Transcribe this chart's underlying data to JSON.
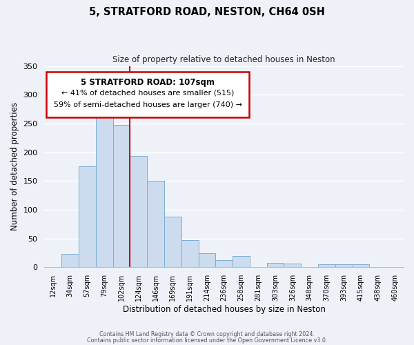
{
  "title": "5, STRATFORD ROAD, NESTON, CH64 0SH",
  "subtitle": "Size of property relative to detached houses in Neston",
  "xlabel": "Distribution of detached houses by size in Neston",
  "ylabel": "Number of detached properties",
  "bar_labels": [
    "12sqm",
    "34sqm",
    "57sqm",
    "79sqm",
    "102sqm",
    "124sqm",
    "146sqm",
    "169sqm",
    "191sqm",
    "214sqm",
    "236sqm",
    "258sqm",
    "281sqm",
    "303sqm",
    "326sqm",
    "348sqm",
    "370sqm",
    "393sqm",
    "415sqm",
    "438sqm",
    "460sqm"
  ],
  "bar_values": [
    0,
    23,
    175,
    268,
    248,
    193,
    150,
    88,
    47,
    25,
    12,
    20,
    0,
    8,
    7,
    0,
    5,
    5,
    5,
    0,
    0
  ],
  "bar_color": "#ccdcee",
  "bar_edge_color": "#7aadd4",
  "ylim": [
    0,
    350
  ],
  "yticks": [
    0,
    50,
    100,
    150,
    200,
    250,
    300,
    350
  ],
  "vline_color": "#cc0000",
  "annotation_title": "5 STRATFORD ROAD: 107sqm",
  "annotation_line1": "← 41% of detached houses are smaller (515)",
  "annotation_line2": "59% of semi-detached houses are larger (740) →",
  "annotation_box_color": "#cc0000",
  "footer_line1": "Contains HM Land Registry data © Crown copyright and database right 2024.",
  "footer_line2": "Contains public sector information licensed under the Open Government Licence v3.0.",
  "bg_color": "#eef2f8",
  "grid_color": "#ffffff"
}
